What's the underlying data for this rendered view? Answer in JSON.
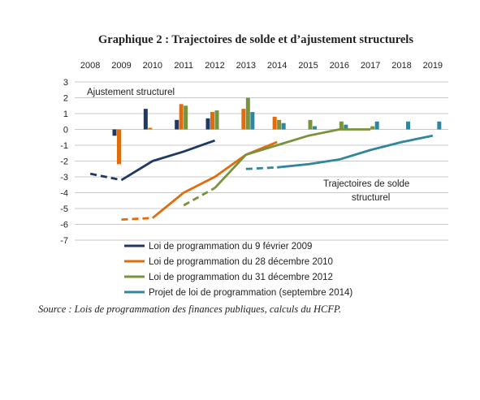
{
  "title": "Graphique 2 : Trajectoires de solde et d’ajustement structurels",
  "source": "Source : Lois de programmation des finances publiques, calculs du HCFP.",
  "annotations": {
    "bars_label": "Ajustement structurel",
    "lines_label_1": "Trajectoires de solde",
    "lines_label_2": "structurel"
  },
  "chart_data": {
    "type": "bar",
    "combo": "bar+line",
    "categories": [
      "2008",
      "2009",
      "2010",
      "2011",
      "2012",
      "2013",
      "2014",
      "2015",
      "2016",
      "2017",
      "2018",
      "2019"
    ],
    "ylim": [
      -7,
      3
    ],
    "yticks": [
      "3",
      "2",
      "1",
      "0",
      "-1",
      "-2",
      "-3",
      "-4",
      "-5",
      "-6",
      "-7"
    ],
    "grid": true,
    "legend_position": "bottom-left",
    "series": [
      {
        "name": "Loi de programmation du 9 février 2009",
        "color": "#1f3864",
        "bars": [
          null,
          -0.4,
          1.3,
          0.6,
          0.7,
          null,
          null,
          null,
          null,
          null,
          null,
          null
        ],
        "line_dashed": [
          -2.8,
          -3.2,
          null,
          null,
          null,
          null,
          null,
          null,
          null,
          null,
          null,
          null
        ],
        "line_solid": [
          null,
          -3.2,
          -2.0,
          -1.4,
          -0.7,
          null,
          null,
          null,
          null,
          null,
          null,
          null
        ]
      },
      {
        "name": "Loi de programmation du 28 décembre 2010",
        "color": "#e36c0a",
        "bars": [
          null,
          -2.2,
          0.1,
          1.6,
          1.1,
          1.3,
          0.8,
          null,
          null,
          null,
          null,
          null
        ],
        "line_dashed": [
          null,
          -5.7,
          -5.6,
          null,
          null,
          null,
          null,
          null,
          null,
          null,
          null,
          null
        ],
        "line_solid": [
          null,
          null,
          -5.6,
          -4.0,
          -3.0,
          -1.6,
          -0.8,
          null,
          null,
          null,
          null,
          null
        ]
      },
      {
        "name": "Loi de programmation du 31 décembre 2012",
        "color": "#77933c",
        "bars": [
          null,
          null,
          null,
          1.5,
          1.2,
          2.0,
          0.6,
          0.6,
          0.5,
          0.2,
          null,
          null
        ],
        "line_dashed": [
          null,
          null,
          null,
          -4.8,
          -3.7,
          null,
          null,
          null,
          null,
          null,
          null,
          null
        ],
        "line_solid": [
          null,
          null,
          null,
          null,
          -3.7,
          -1.6,
          -1.0,
          -0.4,
          0.0,
          0.0,
          null,
          null
        ]
      },
      {
        "name": "Projet de loi de programmation (septembre 2014)",
        "color": "#31859c",
        "bars": [
          null,
          null,
          null,
          null,
          null,
          1.1,
          0.4,
          0.2,
          0.3,
          0.5,
          0.5,
          0.5
        ],
        "line_dashed": [
          null,
          null,
          null,
          null,
          null,
          -2.5,
          -2.4,
          null,
          null,
          null,
          null,
          null
        ],
        "line_solid": [
          null,
          null,
          null,
          null,
          null,
          null,
          -2.4,
          -2.2,
          -1.9,
          -1.3,
          -0.8,
          -0.4
        ]
      }
    ]
  }
}
